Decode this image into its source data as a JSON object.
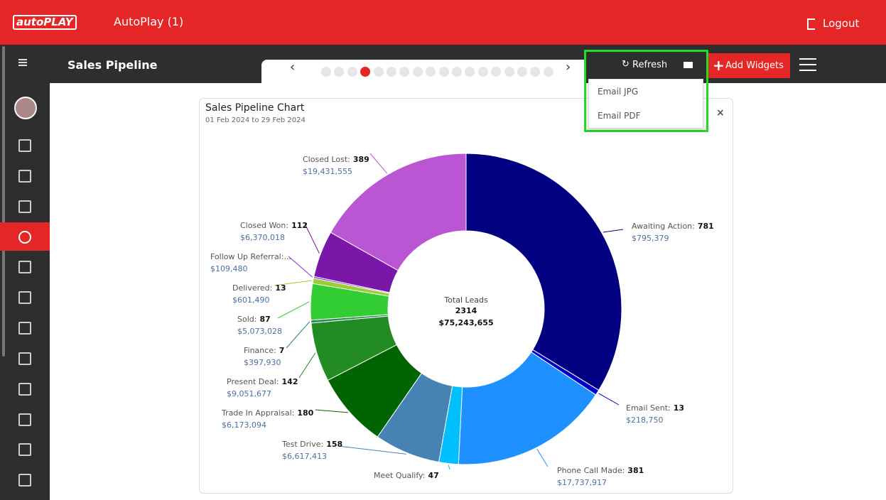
{
  "header": {
    "logo": "autoPLAY",
    "title": "AutoPlay (1)",
    "logout": "Logout"
  },
  "toolbar": {
    "page_title": "Sales Pipeline",
    "refresh": "Refresh",
    "add_widgets": "Add Widgets"
  },
  "dropdown": {
    "items": [
      "Email JPG",
      "Email PDF"
    ]
  },
  "card": {
    "title": "Sales Pipeline Chart",
    "subtitle": "01 Feb 2024 to 29 Feb 2024",
    "close": "×"
  },
  "chart_data": {
    "type": "donut",
    "categories": [
      "Awaiting Action:",
      "Email Sent:",
      "Phone Call Made:",
      "Meet Qualify:",
      "Test Drive:",
      "Trade In Appraisal:",
      "Present Deal:",
      "Finance:",
      "Sold:",
      "Delivered:",
      "Follow Up Referral:...",
      "Closed Won:",
      "Closed Lost:"
    ],
    "values": [
      781,
      13,
      381,
      47,
      158,
      180,
      142,
      7,
      87,
      13,
      4,
      112,
      389
    ],
    "value_labels": [
      "781",
      "13",
      "381",
      "47",
      "158",
      "180",
      "142",
      "7",
      "87",
      "13",
      null,
      "112",
      "389"
    ],
    "amounts": [
      "$795,379",
      "$218,750",
      "$17,737,917",
      null,
      "$6,617,413",
      "$6,173,094",
      "$9,051,677",
      "$397,930",
      "$5,073,028",
      "$601,490",
      "$109,480",
      "$6,370,018",
      "$19,431,555"
    ],
    "colors": [
      "#000080",
      "#0000cd",
      "#1e90ff",
      "#00bfff",
      "#4682b4",
      "#006400",
      "#228b22",
      "#2e8b57",
      "#32cd32",
      "#9acd32",
      "#8a2be2",
      "#7a16a8",
      "#ba55d3"
    ],
    "center_title": "Total Leads",
    "total": "2314",
    "total_amount": "$75,243,655"
  }
}
